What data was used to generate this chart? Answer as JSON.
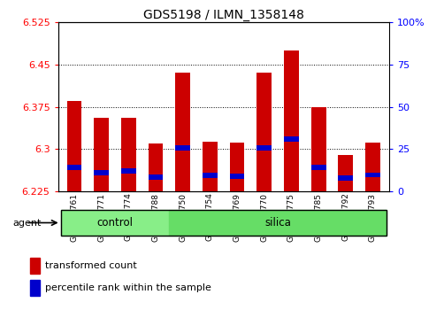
{
  "title": "GDS5198 / ILMN_1358148",
  "samples": [
    "GSM665761",
    "GSM665771",
    "GSM665774",
    "GSM665788",
    "GSM665750",
    "GSM665754",
    "GSM665769",
    "GSM665770",
    "GSM665775",
    "GSM665785",
    "GSM665792",
    "GSM665793"
  ],
  "groups": [
    "control",
    "control",
    "control",
    "control",
    "silica",
    "silica",
    "silica",
    "silica",
    "silica",
    "silica",
    "silica",
    "silica"
  ],
  "bar_values": [
    6.385,
    6.355,
    6.355,
    6.31,
    6.435,
    6.313,
    6.312,
    6.435,
    6.475,
    6.375,
    6.29,
    6.312
  ],
  "percentile_values": [
    6.268,
    6.258,
    6.261,
    6.25,
    6.302,
    6.253,
    6.252,
    6.302,
    6.318,
    6.268,
    6.249,
    6.254
  ],
  "ymin": 6.225,
  "ymax": 6.525,
  "yticks": [
    6.225,
    6.3,
    6.375,
    6.45,
    6.525
  ],
  "ytick_labels": [
    "6.225",
    "6.3",
    "6.375",
    "6.45",
    "6.525"
  ],
  "right_yticks": [
    0,
    25,
    50,
    75,
    100
  ],
  "right_ytick_labels": [
    "0",
    "25",
    "50",
    "75",
    "100%"
  ],
  "bar_color": "#cc0000",
  "percentile_color": "#0000cc",
  "control_color": "#88ee88",
  "silica_color": "#66dd66",
  "bar_width": 0.55,
  "base_value": 6.225,
  "agent_label": "agent",
  "control_label": "control",
  "silica_label": "silica",
  "legend_red": "transformed count",
  "legend_blue": "percentile rank within the sample",
  "n_control": 4,
  "n_silica": 8
}
